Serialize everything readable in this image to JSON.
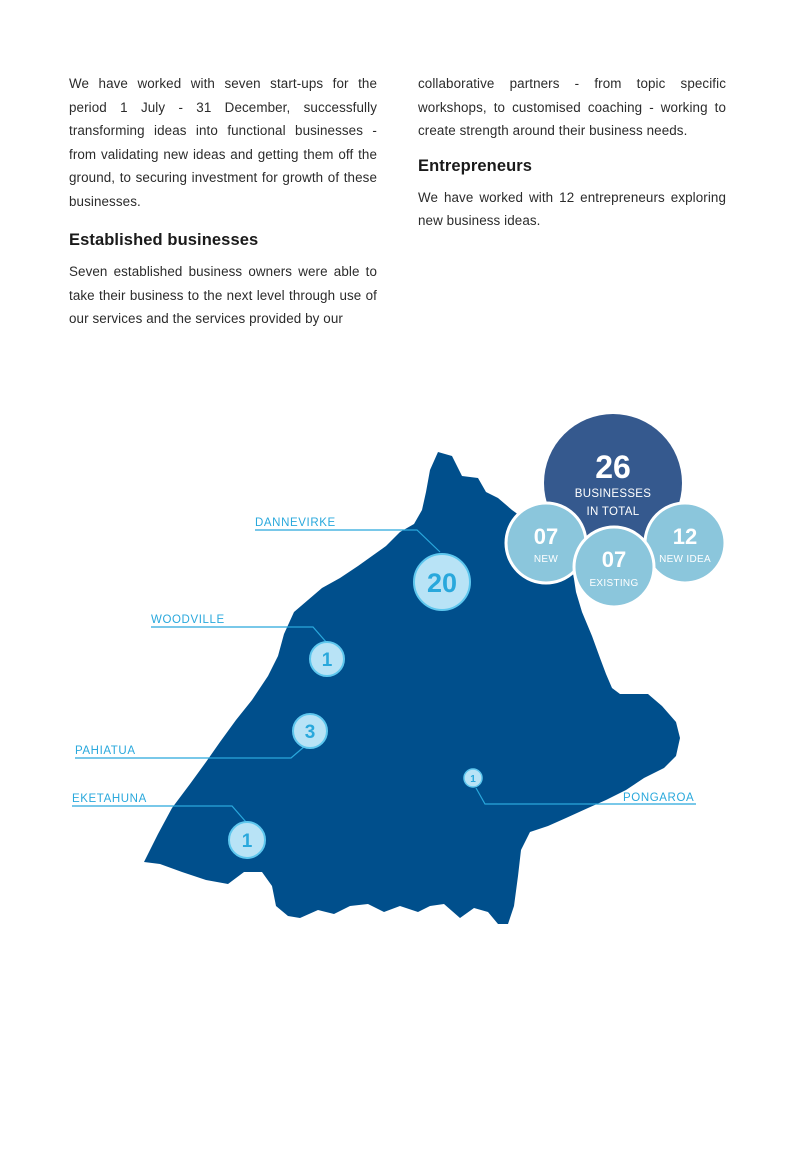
{
  "text": {
    "left_para1": "We have worked with seven start-ups for the period 1 July - 31 December, successfully transforming ideas into functional businesses - from validating new ideas and getting them off the ground, to securing investment for growth of these businesses.",
    "established_heading": "Established businesses",
    "left_para2": "Seven established business owners were able to take their business to the next level through use of our services and the services provided by our",
    "right_para1": "collaborative partners - from topic specific workshops, to customised coaching - working to create strength around their business needs.",
    "entrepreneurs_heading": "Entrepreneurs",
    "right_para2": "We have worked with 12 entrepreneurs exploring new business ideas."
  },
  "map": {
    "region_color": "#004f8c",
    "accent_color": "#29a8dc",
    "locations": [
      {
        "name": "DANNEVIRKE",
        "count": "20"
      },
      {
        "name": "WOODVILLE",
        "count": "1"
      },
      {
        "name": "PAHIATUA",
        "count": "3"
      },
      {
        "name": "EKETAHUNA",
        "count": "1"
      },
      {
        "name": "PONGAROA",
        "count": "1"
      }
    ]
  },
  "stats": {
    "total": {
      "value": "26",
      "line1": "BUSINESSES",
      "line2": "IN TOTAL",
      "color": "#35598e"
    },
    "new": {
      "value": "07",
      "label": "NEW",
      "color": "#8bc6dc"
    },
    "existing": {
      "value": "07",
      "label": "EXISTING",
      "color": "#8bc6dc"
    },
    "new_idea": {
      "value": "12",
      "label": "NEW IDEA",
      "color": "#8bc6dc"
    }
  }
}
